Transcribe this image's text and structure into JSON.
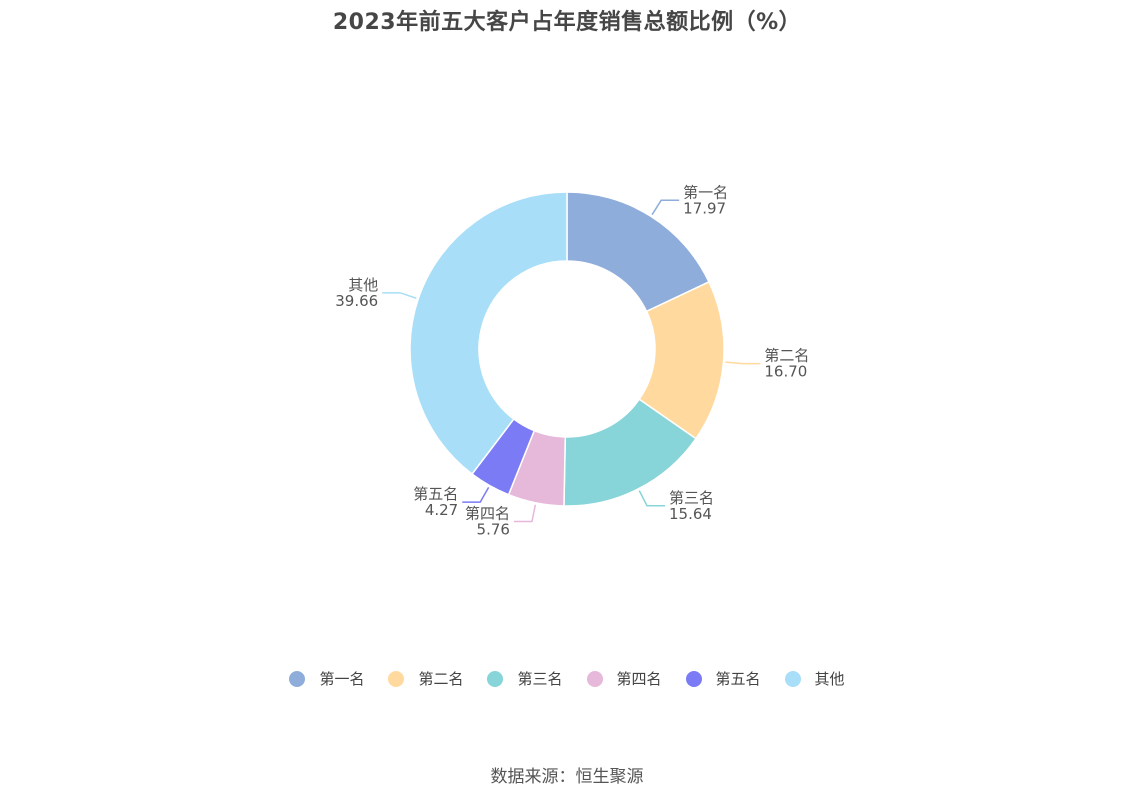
{
  "chart_data": {
    "type": "pie",
    "variant": "donut",
    "title": "2023年前五大客户占年度销售总额比例（%）",
    "categories": [
      "第一名",
      "第二名",
      "第三名",
      "第四名",
      "第五名",
      "其他"
    ],
    "values": [
      17.97,
      16.7,
      15.64,
      5.76,
      4.27,
      39.66
    ],
    "value_labels": [
      "17.97",
      "16.70",
      "15.64",
      "5.76",
      "4.27",
      "39.66"
    ],
    "colors": [
      "#8EADDB",
      "#FFD99E",
      "#87D4D9",
      "#E6B8D9",
      "#7B7BF5",
      "#A8DEF8"
    ],
    "legend_placement": "bottom"
  },
  "source": "数据来源：恒生聚源"
}
